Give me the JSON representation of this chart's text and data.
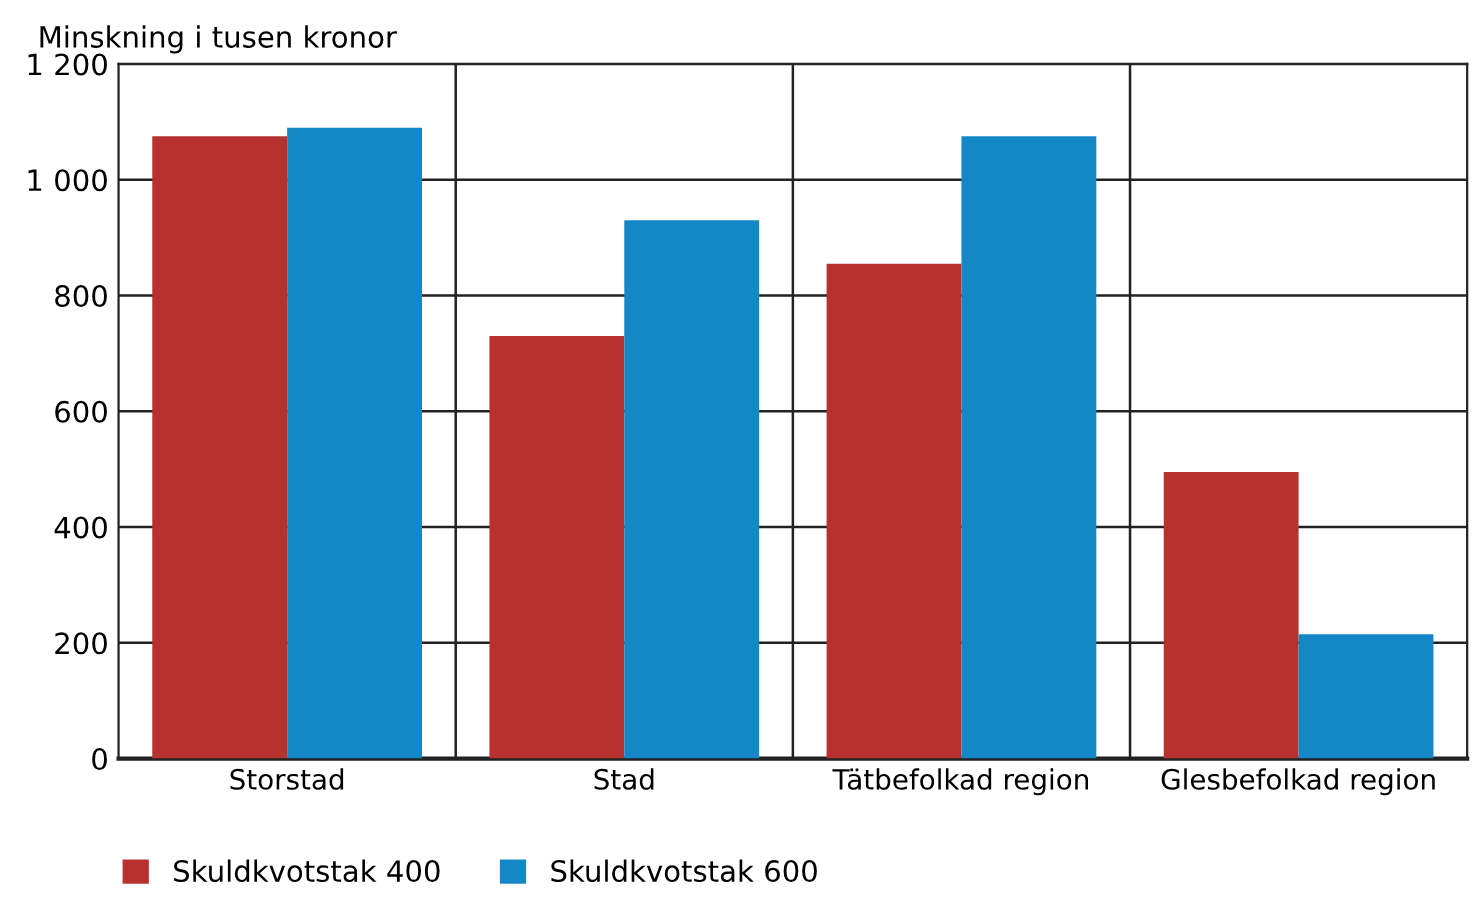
{
  "chart_data": {
    "type": "bar",
    "ylabel": "Minskning i tusen kronor",
    "categories": [
      "Storstad",
      "Stad",
      "Tätbefolkad region",
      "Glesbefolkad region"
    ],
    "series": [
      {
        "name": "Skuldkvotstak 400",
        "color": "#b7312e",
        "values": [
          1075,
          730,
          855,
          495
        ]
      },
      {
        "name": "Skuldkvotstak 600",
        "color": "#1487c6",
        "values": [
          1090,
          930,
          1075,
          215
        ]
      }
    ],
    "ylim": [
      0,
      1200
    ],
    "yticks": [
      0,
      {
        "value": 200,
        "label": "200"
      },
      {
        "value": 400,
        "label": "400"
      },
      {
        "value": 600,
        "label": "600"
      },
      {
        "value": 800,
        "label": "800"
      },
      {
        "value": 1000,
        "label": "1 000"
      },
      {
        "value": 1200,
        "label": "1 200"
      }
    ],
    "grid": true,
    "legend": "bottom left"
  }
}
